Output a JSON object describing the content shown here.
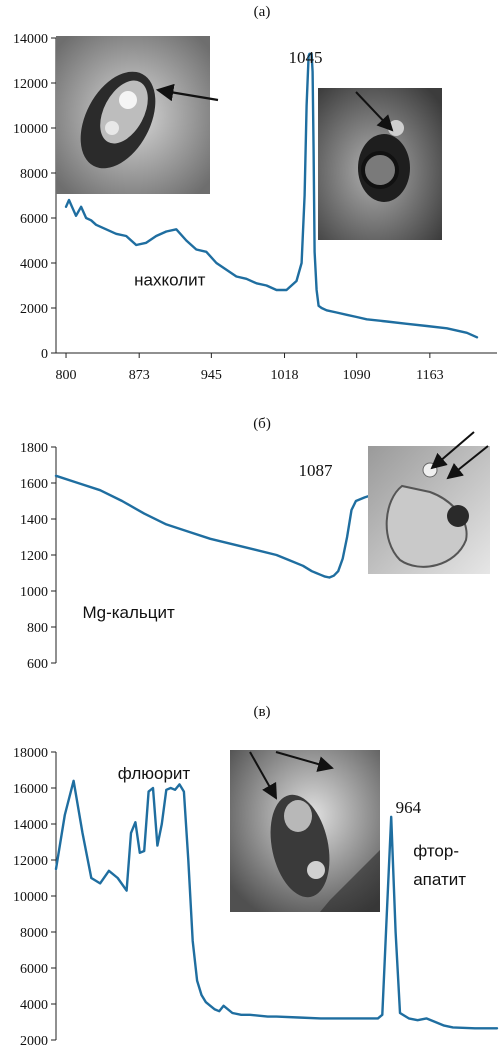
{
  "colors": {
    "series": "#1f6ea0",
    "axis": "#222222",
    "background": "#ffffff"
  },
  "chart_data": [
    {
      "type": "line",
      "panel_label": "(а)",
      "title": "",
      "xlabel": "",
      "ylabel": "",
      "xlim": [
        790,
        1230
      ],
      "ylim": [
        0,
        14000
      ],
      "x_ticks": [
        800,
        873,
        945,
        1018,
        1090,
        1163
      ],
      "y_ticks": [
        0,
        2000,
        4000,
        6000,
        8000,
        10000,
        12000,
        14000
      ],
      "annotations": [
        {
          "text": "нахколит",
          "x": 868,
          "y": 3000
        },
        {
          "text": "1045",
          "x": 1022,
          "y": 12900
        }
      ],
      "inset_images": 2,
      "series": [
        {
          "x": [
            800,
            803,
            806,
            810,
            815,
            820,
            825,
            830,
            840,
            850,
            860,
            870,
            880,
            890,
            900,
            910,
            920,
            930,
            940,
            950,
            960,
            970,
            980,
            990,
            1000,
            1010,
            1020,
            1030,
            1035,
            1038,
            1040,
            1042,
            1043,
            1044,
            1045,
            1046,
            1047,
            1048,
            1050,
            1052,
            1055,
            1060,
            1070,
            1080,
            1090,
            1100,
            1120,
            1140,
            1160,
            1180,
            1200,
            1210
          ],
          "y": [
            6500,
            6800,
            6500,
            6100,
            6500,
            6000,
            5900,
            5700,
            5500,
            5300,
            5200,
            4800,
            4900,
            5200,
            5400,
            5500,
            5000,
            4600,
            4500,
            4000,
            3700,
            3400,
            3300,
            3100,
            3000,
            2800,
            2800,
            3200,
            4000,
            7000,
            11000,
            13200,
            13300,
            13300,
            13300,
            12500,
            9000,
            4500,
            2800,
            2100,
            2000,
            1900,
            1800,
            1700,
            1600,
            1500,
            1400,
            1300,
            1200,
            1100,
            900,
            700
          ]
        }
      ]
    },
    {
      "type": "line",
      "panel_label": "(б)",
      "title": "",
      "xlabel": "",
      "ylabel": "",
      "xlim": [
        0,
        100
      ],
      "ylim": [
        600,
        1800
      ],
      "y_ticks": [
        600,
        800,
        1000,
        1200,
        1400,
        1600,
        1800
      ],
      "annotations": [
        {
          "text": "Mg-кальцит",
          "x": 6,
          "y": 850
        },
        {
          "text": "1087",
          "x": 55,
          "y": 1640
        }
      ],
      "inset_images": 1,
      "series": [
        {
          "x": [
            0,
            5,
            10,
            15,
            20,
            25,
            30,
            35,
            40,
            45,
            50,
            53,
            56,
            58,
            59,
            60,
            61,
            62,
            63,
            64,
            65,
            66,
            67,
            68,
            70,
            75,
            80,
            85,
            90,
            95
          ],
          "y": [
            1640,
            1600,
            1560,
            1500,
            1430,
            1370,
            1330,
            1290,
            1260,
            1230,
            1200,
            1170,
            1140,
            1110,
            1100,
            1090,
            1080,
            1075,
            1085,
            1110,
            1180,
            1300,
            1450,
            1500,
            1520,
            1560,
            1580,
            1560,
            1480,
            1380
          ]
        }
      ]
    },
    {
      "type": "line",
      "panel_label": "(в)",
      "title": "",
      "xlabel": "",
      "ylabel": "",
      "xlim": [
        0,
        100
      ],
      "ylim": [
        2000,
        18000
      ],
      "y_ticks": [
        2000,
        4000,
        6000,
        8000,
        10000,
        12000,
        14000,
        16000,
        18000
      ],
      "annotations": [
        {
          "text": "флюорит",
          "x": 14,
          "y": 16500
        },
        {
          "text": "964",
          "x": 77,
          "y": 14600
        },
        {
          "text": "фтор-",
          "x": 81,
          "y": 12200
        },
        {
          "text": "апатит",
          "x": 81,
          "y": 10600
        }
      ],
      "inset_images": 1,
      "series": [
        {
          "x": [
            0,
            2,
            4,
            6,
            8,
            10,
            12,
            14,
            16,
            17,
            18,
            19,
            20,
            21,
            22,
            23,
            24,
            25,
            26,
            27,
            28,
            29,
            30,
            31,
            32,
            33,
            34,
            35,
            36,
            37,
            38,
            40,
            42,
            44,
            46,
            48,
            50,
            55,
            60,
            65,
            70,
            73,
            74,
            75,
            76,
            77,
            78,
            80,
            82,
            84,
            86,
            88,
            90,
            95,
            100
          ],
          "y": [
            11500,
            14500,
            16400,
            13500,
            11000,
            10700,
            11400,
            11000,
            10300,
            13500,
            14100,
            12400,
            12500,
            15800,
            16000,
            12800,
            14000,
            15900,
            16000,
            15900,
            16200,
            15800,
            12000,
            7500,
            5300,
            4500,
            4100,
            3900,
            3700,
            3600,
            3900,
            3500,
            3400,
            3400,
            3350,
            3300,
            3300,
            3250,
            3200,
            3200,
            3200,
            3200,
            3400,
            9000,
            14400,
            8000,
            3500,
            3200,
            3100,
            3200,
            3000,
            2800,
            2700,
            2650,
            2650
          ]
        }
      ]
    }
  ]
}
